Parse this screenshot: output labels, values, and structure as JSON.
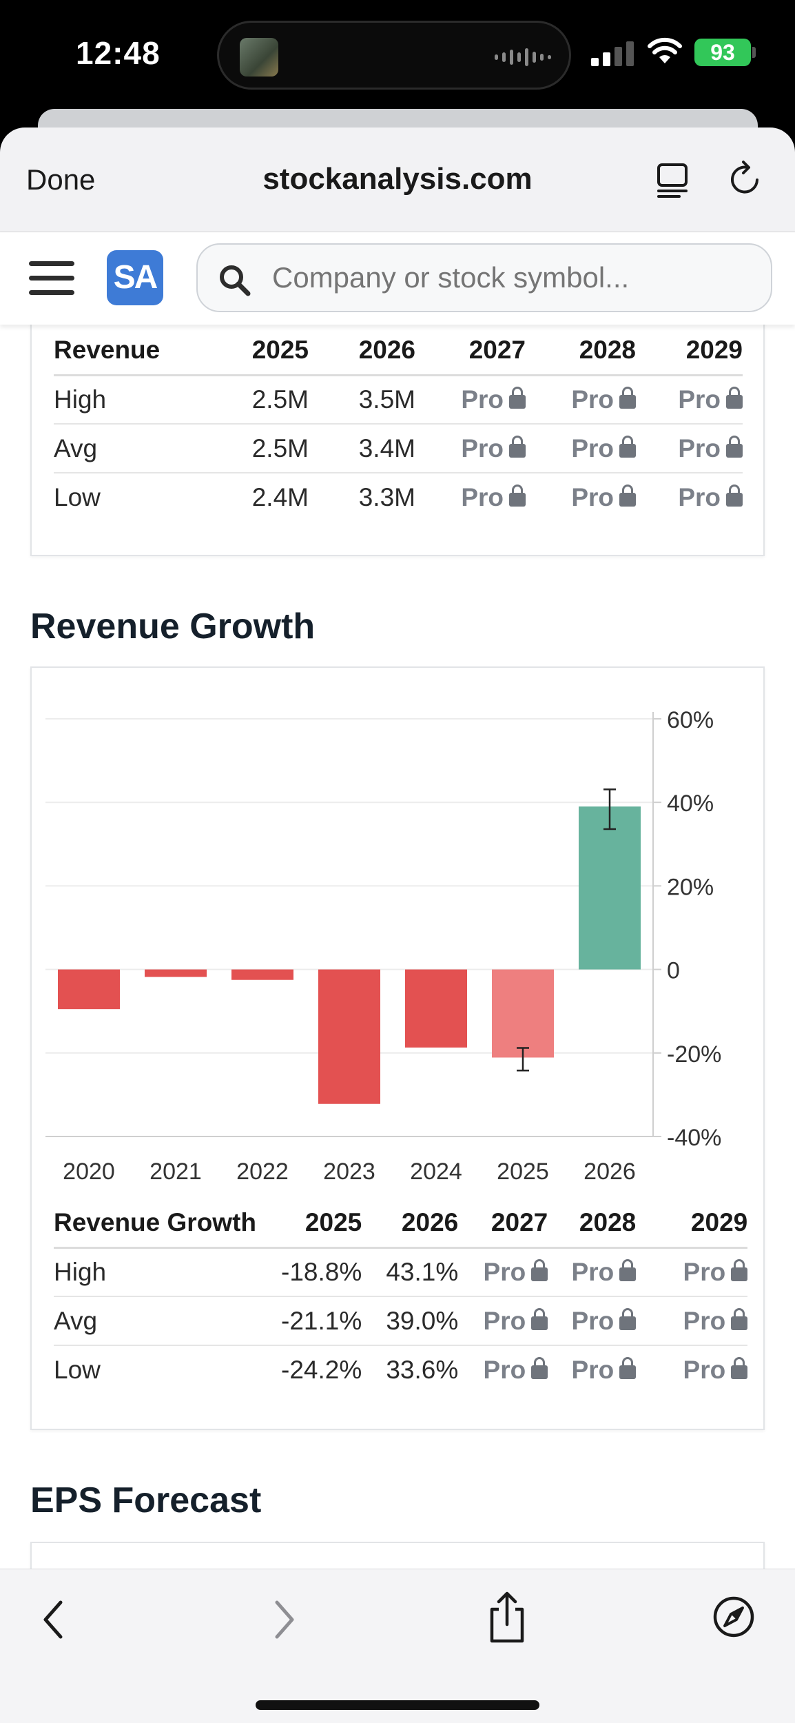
{
  "status": {
    "time": "12:48",
    "battery": "93"
  },
  "browser": {
    "done_label": "Done",
    "url": "stockanalysis.com"
  },
  "nav": {
    "logo": "SA",
    "search_placeholder": "Company or stock symbol..."
  },
  "revenue_table": {
    "header": [
      "Revenue",
      "2025",
      "2026",
      "2027",
      "2028",
      "2029"
    ],
    "rows": [
      {
        "label": "High",
        "v2025": "2.5M",
        "v2026": "3.5M",
        "pro": "Pro"
      },
      {
        "label": "Avg",
        "v2025": "2.5M",
        "v2026": "3.4M",
        "pro": "Pro"
      },
      {
        "label": "Low",
        "v2025": "2.4M",
        "v2026": "3.3M",
        "pro": "Pro"
      }
    ]
  },
  "growth_section_title": "Revenue Growth",
  "chart_data": {
    "type": "bar",
    "categories": [
      "2020",
      "2021",
      "2022",
      "2023",
      "2024",
      "2025",
      "2026"
    ],
    "values": [
      -9.5,
      -1.8,
      -2.5,
      -32.2,
      -18.7,
      -21.1,
      39.0
    ],
    "estimate_ranges": [
      null,
      null,
      null,
      null,
      null,
      [
        -24.2,
        -18.8
      ],
      [
        33.6,
        43.1
      ]
    ],
    "estimate_categories": [
      "2025",
      "2026"
    ],
    "y_ticks": [
      "60%",
      "40%",
      "20%",
      "0",
      "-20%",
      "-40%"
    ],
    "ylim": [
      -40,
      60
    ],
    "axis_position": "right",
    "grid": true,
    "colors": {
      "actual": "#e35151",
      "estimate_negative": "#ee7f7f",
      "estimate_positive": "#67b39d"
    }
  },
  "growth_table": {
    "header": [
      "Revenue Growth",
      "2025",
      "2026",
      "2027",
      "2028",
      "2029"
    ],
    "rows": [
      {
        "label": "High",
        "v2025": "-18.8%",
        "v2026": "43.1%",
        "pro": "Pro"
      },
      {
        "label": "Avg",
        "v2025": "-21.1%",
        "v2026": "39.0%",
        "pro": "Pro"
      },
      {
        "label": "Low",
        "v2025": "-24.2%",
        "v2026": "33.6%",
        "pro": "Pro"
      }
    ]
  },
  "eps_section_title": "EPS Forecast",
  "toolbar_icons": [
    "back-icon",
    "forward-icon",
    "share-icon",
    "compass-icon"
  ]
}
